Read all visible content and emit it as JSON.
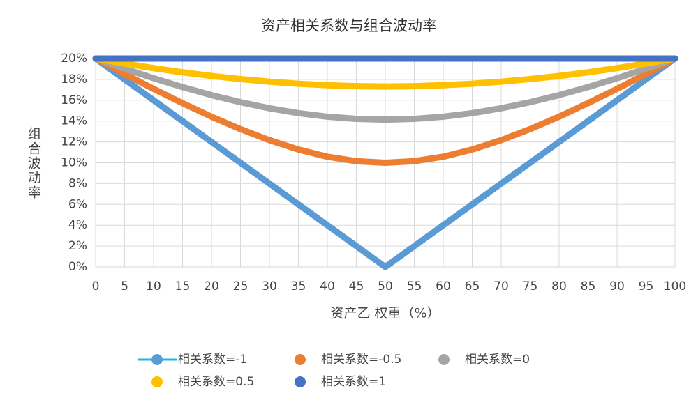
{
  "chart_data": {
    "type": "line",
    "title": "资产相关系数与组合波动率",
    "x_label": "资产乙 权重（%）",
    "y_label": "组合波动率",
    "x": [
      0,
      5,
      10,
      15,
      20,
      25,
      30,
      35,
      40,
      45,
      50,
      55,
      60,
      65,
      70,
      75,
      80,
      85,
      90,
      95,
      100
    ],
    "xlim": [
      0,
      100
    ],
    "xticks": [
      0,
      5,
      10,
      15,
      20,
      25,
      30,
      35,
      40,
      45,
      50,
      55,
      60,
      65,
      70,
      75,
      80,
      85,
      90,
      95,
      100
    ],
    "ylim": [
      0,
      20
    ],
    "yticks": [
      {
        "value": 0,
        "label": "0%"
      },
      {
        "value": 2,
        "label": "2%"
      },
      {
        "value": 4,
        "label": "4%"
      },
      {
        "value": 6,
        "label": "6%"
      },
      {
        "value": 8,
        "label": "8%"
      },
      {
        "value": 10,
        "label": "10%"
      },
      {
        "value": 12,
        "label": "12%"
      },
      {
        "value": 14,
        "label": "14%"
      },
      {
        "value": 16,
        "label": "16%"
      },
      {
        "value": 18,
        "label": "18%"
      },
      {
        "value": 20,
        "label": "20%"
      }
    ],
    "grid": true,
    "legend": "bottom",
    "series": [
      {
        "name": "相关系数=-1",
        "color": "#5b9bd5",
        "values": [
          20,
          18,
          16,
          14,
          12,
          10,
          8,
          6,
          4,
          2,
          0,
          2,
          4,
          6,
          8,
          10,
          12,
          14,
          16,
          18,
          20
        ]
      },
      {
        "name": "相关系数=-0.5",
        "color": "#ed7d31",
        "values": [
          20,
          18.52,
          17.09,
          15.72,
          14.42,
          13.23,
          12.17,
          11.27,
          10.58,
          10.15,
          10,
          10.15,
          10.58,
          11.27,
          12.17,
          13.23,
          14.42,
          15.72,
          17.09,
          18.52,
          20
        ]
      },
      {
        "name": "相关系数=0",
        "color": "#a5a5a5",
        "values": [
          20,
          19.03,
          18.11,
          17.26,
          16.49,
          15.81,
          15.23,
          14.76,
          14.42,
          14.21,
          14.14,
          14.21,
          14.42,
          14.76,
          15.23,
          15.81,
          16.49,
          17.26,
          18.11,
          19.03,
          20
        ]
      },
      {
        "name": "相关系数=0.5",
        "color": "#ffc000",
        "values": [
          20,
          19.52,
          19.08,
          18.68,
          18.33,
          18.03,
          17.78,
          17.58,
          17.44,
          17.35,
          17.32,
          17.35,
          17.44,
          17.58,
          17.78,
          18.03,
          18.33,
          18.68,
          19.08,
          19.52,
          20
        ]
      },
      {
        "name": "相关系数=1",
        "color": "#4472c4",
        "values": [
          20,
          20,
          20,
          20,
          20,
          20,
          20,
          20,
          20,
          20,
          20,
          20,
          20,
          20,
          20,
          20,
          20,
          20,
          20,
          20,
          20
        ]
      }
    ]
  }
}
